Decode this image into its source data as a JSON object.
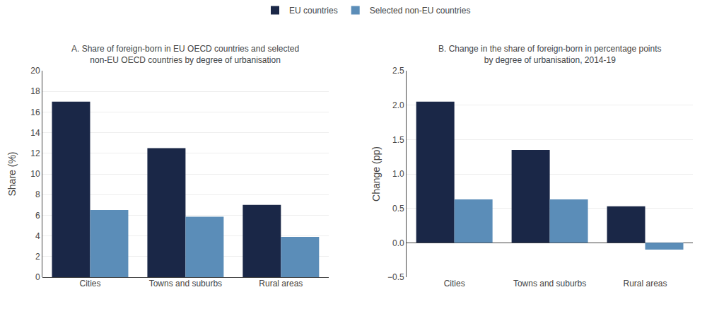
{
  "chart_data": [
    {
      "type": "bar",
      "title": "A. Share of foreign-born in EU OECD countries and selected\nnon-EU OECD countries by degree of urbanisation",
      "y_label": "Share (%)",
      "categories": [
        "Cities",
        "Towns and suburbs",
        "Rural areas"
      ],
      "series": [
        {
          "name": "EU countries",
          "color": "#1a2747",
          "values": [
            17.0,
            12.5,
            7.0
          ]
        },
        {
          "name": "Selected non-EU countries",
          "color": "#5b8db8",
          "values": [
            6.5,
            5.85,
            3.9
          ]
        }
      ],
      "ylim": [
        0,
        20
      ],
      "yticks": [
        0,
        2,
        4,
        6,
        8,
        10,
        12,
        14,
        16,
        18,
        20
      ],
      "grid": true,
      "legend": "top"
    },
    {
      "type": "bar",
      "title": "B. Change in the share of foreign-born in percentage points\nby degree of urbanisation, 2014-19",
      "y_label": "Change (pp)",
      "categories": [
        "Cities",
        "Towns and suburbs",
        "Rural areas"
      ],
      "series": [
        {
          "name": "EU countries",
          "color": "#1a2747",
          "values": [
            2.05,
            1.35,
            0.53
          ]
        },
        {
          "name": "Selected non-EU countries",
          "color": "#5b8db8",
          "values": [
            0.63,
            0.63,
            -0.1
          ]
        }
      ],
      "ylim": [
        -0.5,
        2.5
      ],
      "yticks": [
        {
          "value": -0.5,
          "label": "−0.5"
        },
        {
          "value": 0,
          "label": "0.0"
        },
        0.5,
        {
          "value": 1.0,
          "label": "1.0"
        },
        1.5,
        {
          "value": 2.0,
          "label": "2.0"
        },
        2.5
      ],
      "grid": true
    }
  ]
}
